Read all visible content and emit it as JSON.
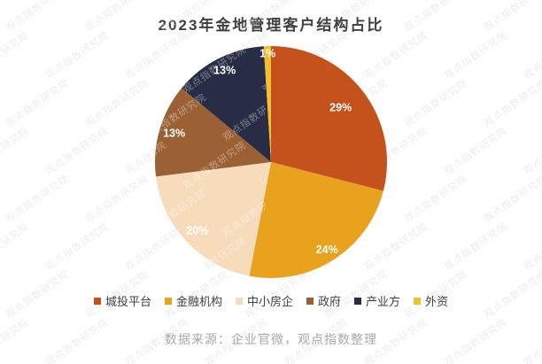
{
  "title": "2023年金地管理客户结构占比",
  "source_note": "数据来源：企业官微，观点指数整理",
  "watermark": {
    "text": "观点指数研究院"
  },
  "chart_data": {
    "type": "pie",
    "title": "2023年金地管理客户结构占比",
    "categories": [
      "城投平台",
      "金融机构",
      "中小房企",
      "政府",
      "产业方",
      "外资"
    ],
    "values": [
      29,
      24,
      20,
      13,
      13,
      1
    ],
    "unit": "%",
    "labels": [
      "29%",
      "24%",
      "20%",
      "13%",
      "13%",
      "1%"
    ],
    "colors": [
      "#C5521C",
      "#E8A21D",
      "#F7DCBC",
      "#9B6033",
      "#282D45",
      "#F2C02E"
    ],
    "start_angle_deg": 0,
    "direction": "clockwise",
    "legend_position": "bottom",
    "label_color": "#FFFFFF",
    "label_radius_frac": [
      0.76,
      0.9,
      0.87,
      0.87,
      0.88,
      0.93
    ]
  }
}
